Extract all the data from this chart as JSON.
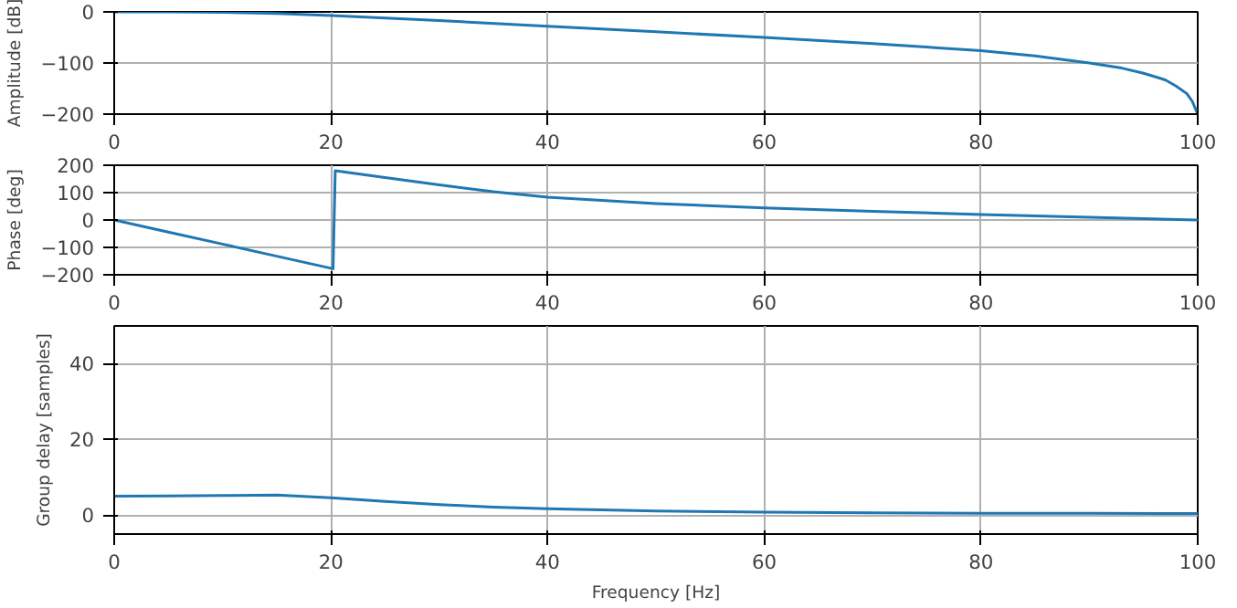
{
  "chart_data": [
    {
      "type": "line",
      "ylabel": "Amplitude [dB]",
      "x": [
        0,
        5,
        10,
        15,
        20,
        25,
        30,
        40,
        50,
        60,
        70,
        80,
        85,
        90,
        93,
        95,
        97,
        98,
        99,
        99.5,
        100
      ],
      "series": [
        {
          "color": "#1f77b4",
          "values": [
            0,
            0,
            -1,
            -3,
            -7,
            -12,
            -17,
            -28,
            -39,
            -50,
            -62,
            -76,
            -86,
            -100,
            -110,
            -120,
            -133,
            -145,
            -160,
            -175,
            -200
          ]
        }
      ],
      "xlim": [
        0,
        100
      ],
      "ylim": [
        -200,
        0
      ],
      "xticks": [
        0,
        20,
        40,
        60,
        80,
        100
      ],
      "yticks": [
        -200,
        -100,
        0
      ],
      "grid": true
    },
    {
      "type": "line",
      "ylabel": "Phase [deg]",
      "x": [
        0,
        5,
        10,
        15,
        20.2,
        20.4,
        25,
        30,
        35,
        40,
        50,
        60,
        70,
        80,
        90,
        100
      ],
      "series": [
        {
          "color": "#1f77b4",
          "values": [
            0,
            -44,
            -88,
            -132,
            -178,
            180,
            155,
            128,
            103,
            83,
            60,
            44,
            32,
            20,
            10,
            0
          ]
        }
      ],
      "xlim": [
        0,
        100
      ],
      "ylim": [
        -200,
        200
      ],
      "xticks": [
        0,
        20,
        40,
        60,
        80,
        100
      ],
      "yticks": [
        -200,
        -100,
        0,
        100,
        200
      ],
      "grid": true
    },
    {
      "type": "line",
      "xlabel": "Frequency [Hz]",
      "ylabel": "Group delay [samples]",
      "x": [
        0,
        5,
        10,
        15,
        20,
        25,
        30,
        35,
        40,
        50,
        60,
        70,
        80,
        90,
        100
      ],
      "series": [
        {
          "color": "#1f77b4",
          "values": [
            5,
            5.1,
            5.2,
            5.3,
            4.6,
            3.6,
            2.8,
            2.1,
            1.7,
            1.1,
            0.8,
            0.6,
            0.5,
            0.5,
            0.4
          ]
        }
      ],
      "xlim": [
        0,
        100
      ],
      "ylim": [
        -5,
        50
      ],
      "xticks": [
        0,
        20,
        40,
        60,
        80,
        100
      ],
      "yticks": [
        0,
        20,
        40
      ],
      "grid": true
    }
  ]
}
